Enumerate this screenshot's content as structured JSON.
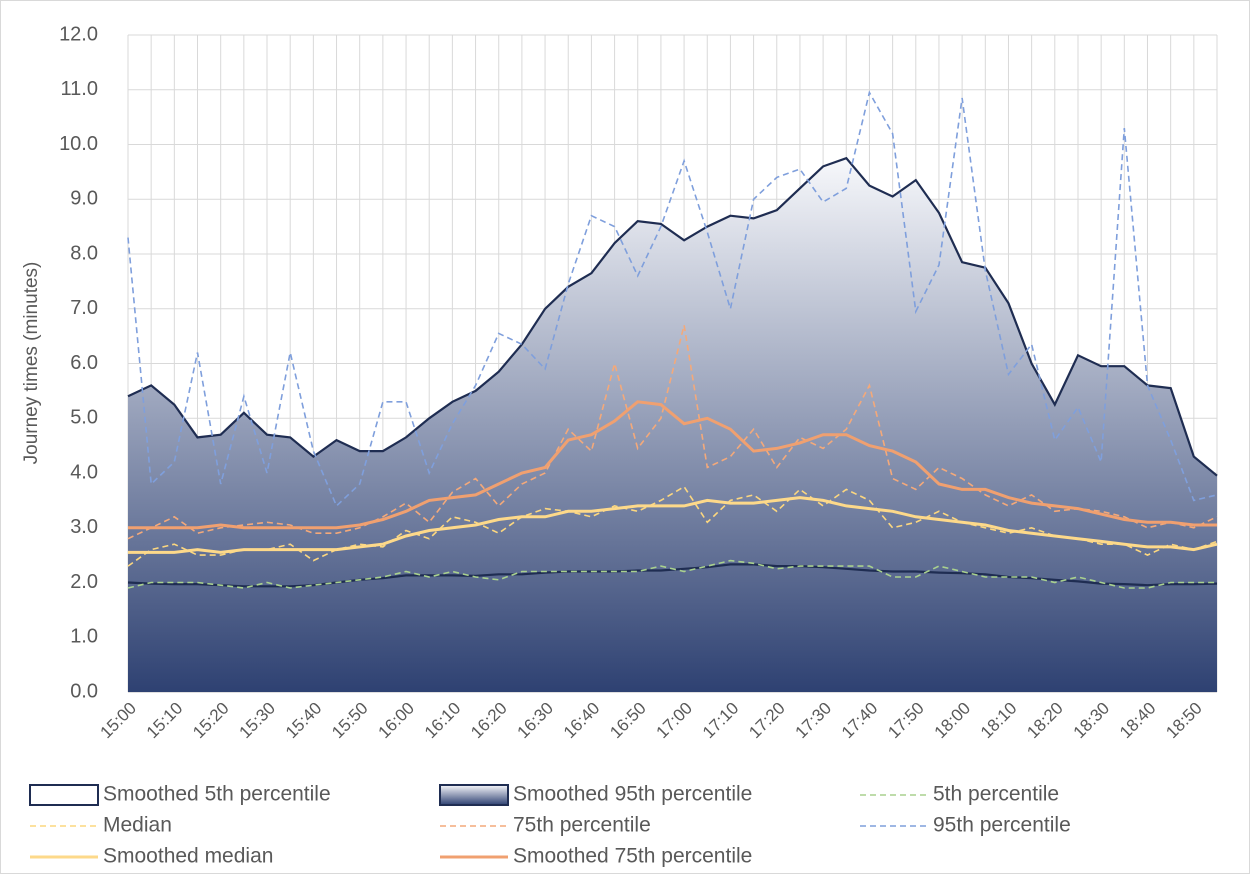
{
  "chart_data": {
    "type": "line",
    "y_label": "Journey times (minutes)",
    "categories": [
      "15:00",
      null,
      "15:10",
      null,
      "15:20",
      null,
      "15:30",
      null,
      "15:40",
      null,
      "15:50",
      null,
      "16:00",
      null,
      "16:10",
      null,
      "16:20",
      null,
      "16:30",
      null,
      "16:40",
      null,
      "16:50",
      null,
      "17:00",
      null,
      "17:10",
      null,
      "17:20",
      null,
      "17:30",
      null,
      "17:40",
      null,
      "17:50",
      null,
      "18:00",
      null,
      "18:10",
      null,
      "18:20",
      null,
      "18:30",
      null,
      "18:40",
      null,
      "18:50",
      null
    ],
    "ylim": [
      0,
      12
    ],
    "yticks": [
      {
        "value": 0,
        "label": "0.0"
      },
      {
        "value": 1,
        "label": "1.0"
      },
      {
        "value": 2,
        "label": "2.0"
      },
      {
        "value": 3,
        "label": "3.0"
      },
      {
        "value": 4,
        "label": "4.0"
      },
      {
        "value": 5,
        "label": "5.0"
      },
      {
        "value": 6,
        "label": "6.0"
      },
      {
        "value": 7,
        "label": "7.0"
      },
      {
        "value": 8,
        "label": "8.0"
      },
      {
        "value": 9,
        "label": "9.0"
      },
      {
        "value": 10,
        "label": "10.0"
      },
      {
        "value": 11,
        "label": "11.0"
      },
      {
        "value": 12,
        "label": "12.0"
      }
    ],
    "grid": true,
    "legend": "bottom",
    "series": [
      {
        "name": "Smoothed 5th percentile",
        "style": "area",
        "color": "#1f2d52",
        "fill": "#ffffff",
        "values": [
          2.0,
          1.98,
          1.97,
          1.97,
          1.95,
          1.93,
          1.93,
          1.93,
          1.95,
          2.0,
          2.05,
          2.08,
          2.13,
          2.13,
          2.13,
          2.12,
          2.15,
          2.15,
          2.18,
          2.2,
          2.2,
          2.2,
          2.22,
          2.22,
          2.25,
          2.28,
          2.33,
          2.33,
          2.3,
          2.3,
          2.28,
          2.25,
          2.22,
          2.2,
          2.2,
          2.18,
          2.17,
          2.15,
          2.1,
          2.08,
          2.05,
          2.02,
          1.98,
          1.97,
          1.95,
          1.97,
          1.97,
          1.98
        ]
      },
      {
        "name": "Smoothed 95th percentile",
        "style": "area",
        "color": "#1f2d52",
        "fill": [
          "#f7f8fb",
          "#2e4172"
        ],
        "values": [
          5.4,
          5.6,
          5.25,
          4.65,
          4.7,
          5.1,
          4.7,
          4.65,
          4.3,
          4.6,
          4.4,
          4.4,
          4.65,
          5.0,
          5.3,
          5.5,
          5.85,
          6.35,
          7.0,
          7.4,
          7.65,
          8.2,
          8.6,
          8.55,
          8.25,
          8.5,
          8.7,
          8.65,
          8.8,
          9.2,
          9.6,
          9.75,
          9.25,
          9.05,
          9.35,
          8.75,
          7.85,
          7.75,
          7.1,
          6.0,
          5.25,
          6.15,
          5.95,
          5.95,
          5.6,
          5.55,
          4.3,
          3.95
        ]
      },
      {
        "name": "5th percentile",
        "style": "dashed",
        "color": "#a9d18e",
        "values": [
          1.9,
          2.0,
          2.0,
          2.0,
          1.95,
          1.9,
          2.0,
          1.9,
          1.95,
          2.0,
          2.05,
          2.1,
          2.2,
          2.1,
          2.2,
          2.1,
          2.05,
          2.2,
          2.2,
          2.2,
          2.2,
          2.2,
          2.2,
          2.3,
          2.2,
          2.3,
          2.4,
          2.35,
          2.25,
          2.3,
          2.3,
          2.3,
          2.3,
          2.1,
          2.1,
          2.3,
          2.2,
          2.1,
          2.1,
          2.1,
          2.0,
          2.1,
          2.0,
          1.9,
          1.9,
          2.0,
          2.0,
          2.0
        ]
      },
      {
        "name": "Median",
        "style": "dashed",
        "color": "#fcd77f",
        "values": [
          2.3,
          2.6,
          2.7,
          2.5,
          2.5,
          2.6,
          2.6,
          2.7,
          2.4,
          2.6,
          2.7,
          2.65,
          2.95,
          2.8,
          3.2,
          3.1,
          2.9,
          3.2,
          3.35,
          3.3,
          3.2,
          3.4,
          3.3,
          3.5,
          3.75,
          3.1,
          3.5,
          3.6,
          3.3,
          3.7,
          3.4,
          3.7,
          3.5,
          3.0,
          3.1,
          3.3,
          3.1,
          3.0,
          2.9,
          3.0,
          2.85,
          2.8,
          2.7,
          2.7,
          2.5,
          2.7,
          2.6,
          2.75
        ]
      },
      {
        "name": "75th percentile",
        "style": "dashed",
        "color": "#f4a97a",
        "values": [
          2.8,
          3.0,
          3.2,
          2.9,
          3.0,
          3.05,
          3.1,
          3.05,
          2.9,
          2.9,
          3.0,
          3.2,
          3.45,
          3.1,
          3.65,
          3.9,
          3.4,
          3.8,
          4.0,
          4.8,
          4.4,
          6.0,
          4.45,
          5.0,
          6.7,
          4.1,
          4.3,
          4.8,
          4.1,
          4.65,
          4.45,
          4.8,
          5.6,
          3.9,
          3.7,
          4.1,
          3.9,
          3.6,
          3.4,
          3.6,
          3.3,
          3.35,
          3.3,
          3.2,
          3.0,
          3.1,
          3.0,
          3.2
        ]
      },
      {
        "name": "95th percentile",
        "style": "dashed",
        "color": "#7f9fdc",
        "values": [
          8.3,
          3.8,
          4.2,
          6.2,
          3.8,
          5.4,
          4.0,
          6.2,
          4.4,
          3.4,
          3.8,
          5.3,
          5.3,
          4.0,
          4.9,
          5.6,
          6.55,
          6.35,
          5.9,
          7.45,
          8.7,
          8.5,
          7.6,
          8.5,
          9.7,
          8.4,
          7.0,
          9.0,
          9.4,
          9.55,
          8.95,
          9.2,
          10.95,
          10.2,
          6.95,
          7.8,
          10.85,
          7.7,
          5.8,
          6.35,
          4.6,
          5.2,
          4.2,
          10.3,
          5.6,
          4.6,
          3.5,
          3.6
        ]
      },
      {
        "name": "Smoothed median",
        "style": "solid",
        "color": "#fdd98a",
        "values": [
          2.55,
          2.55,
          2.55,
          2.6,
          2.55,
          2.6,
          2.6,
          2.6,
          2.6,
          2.6,
          2.65,
          2.7,
          2.85,
          2.95,
          3.0,
          3.05,
          3.15,
          3.2,
          3.2,
          3.3,
          3.3,
          3.35,
          3.4,
          3.4,
          3.4,
          3.5,
          3.45,
          3.45,
          3.5,
          3.55,
          3.5,
          3.4,
          3.35,
          3.3,
          3.2,
          3.15,
          3.1,
          3.05,
          2.95,
          2.9,
          2.85,
          2.8,
          2.75,
          2.7,
          2.65,
          2.65,
          2.6,
          2.7
        ]
      },
      {
        "name": "Smoothed 75th percentile",
        "style": "solid",
        "color": "#f0a070",
        "values": [
          3.0,
          3.0,
          3.0,
          3.0,
          3.05,
          3.0,
          3.0,
          3.0,
          3.0,
          3.0,
          3.05,
          3.15,
          3.3,
          3.5,
          3.55,
          3.6,
          3.8,
          4.0,
          4.1,
          4.6,
          4.7,
          4.95,
          5.3,
          5.25,
          4.9,
          5.0,
          4.8,
          4.4,
          4.45,
          4.55,
          4.7,
          4.7,
          4.5,
          4.4,
          4.2,
          3.8,
          3.7,
          3.7,
          3.55,
          3.45,
          3.4,
          3.35,
          3.25,
          3.15,
          3.1,
          3.1,
          3.05,
          3.05
        ]
      }
    ]
  }
}
